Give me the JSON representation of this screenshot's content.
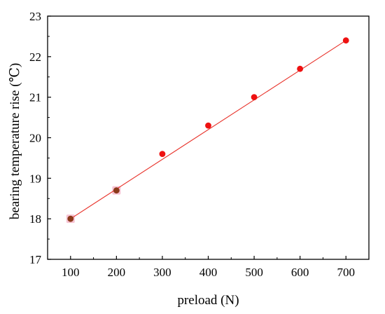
{
  "chart_data": {
    "type": "scatter",
    "title": "",
    "xlabel": "preload (N)",
    "ylabel": "bearing temperature rise (℃)",
    "xlim": [
      50,
      750
    ],
    "ylim": [
      17,
      23
    ],
    "x_ticks": [
      100,
      200,
      300,
      400,
      500,
      600,
      700
    ],
    "y_ticks": [
      17,
      18,
      19,
      20,
      21,
      22,
      23
    ],
    "x_tick_labels": [
      "100",
      "200",
      "300",
      "400",
      "500",
      "600",
      "700"
    ],
    "y_tick_labels": [
      "17",
      "18",
      "19",
      "20",
      "21",
      "22",
      "23"
    ],
    "grid": false,
    "legend": "none",
    "series": [
      {
        "x": [
          100,
          200,
          300,
          400,
          500,
          600,
          700
        ],
        "y": [
          18.0,
          18.7,
          19.6,
          20.3,
          21.0,
          21.7,
          22.4
        ],
        "point_colors": [
          "#8b3a1a",
          "#8b3a1a",
          "#ee1111",
          "#ee1111",
          "#ee1111",
          "#ee1111",
          "#ee1111"
        ]
      }
    ],
    "fit_line": {
      "x": [
        100,
        700
      ],
      "y": [
        18.0,
        22.4
      ],
      "color": "#e8322a"
    },
    "colors": {
      "axis": "#000000",
      "highlight": "#f6c3d3"
    }
  }
}
